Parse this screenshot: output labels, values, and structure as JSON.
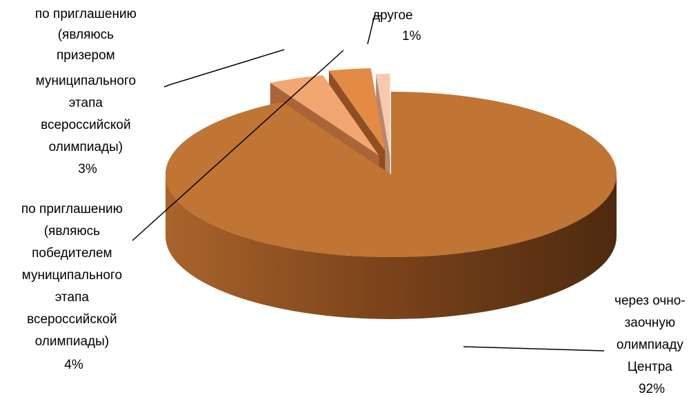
{
  "chart_data": {
    "type": "pie",
    "three_d": true,
    "exploded": true,
    "categories": [
      "через очно-заочную олимпиаду Центра",
      "по приглашению (являюсь победителем муниципального этапа всероссийской олимпиады)",
      "по приглашению (являюсь призером муниципального этапа всероссийской олимпиады)",
      "другое"
    ],
    "values": [
      92,
      4,
      3,
      1
    ],
    "value_labels": [
      "92%",
      "4%",
      "3%",
      "1%"
    ],
    "label_lines": [
      [
        "через очно-",
        "заочную",
        "олимпиаду",
        "Центра",
        "92%"
      ],
      [
        "по приглашению",
        "(являюсь",
        "победителем",
        "муниципального",
        "этапа",
        "всероссийской",
        "олимпиады)",
        "4%"
      ],
      [
        "по приглашению",
        "(являюсь",
        "призером",
        "муниципального",
        "этапа",
        "всероссийской",
        "олимпиады)",
        "3%"
      ],
      [
        "другое",
        "1%"
      ]
    ],
    "colors": [
      "#C07535",
      "#F2A672",
      "#E38A45",
      "#F6C9B0"
    ],
    "side_colors": [
      "#7A431C",
      "#A9643A",
      "#8F4F22",
      "#B8876E"
    ],
    "legend": "none"
  }
}
